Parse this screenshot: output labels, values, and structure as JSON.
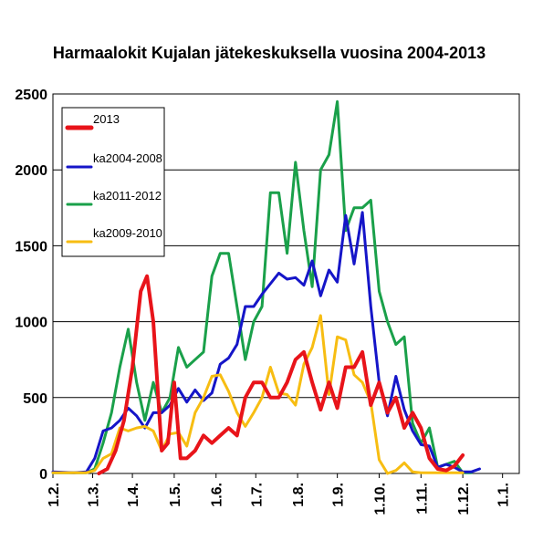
{
  "chart_data": {
    "type": "line",
    "title": "Harmaalokit Kujalan jätekeskuksella vuosina 2004-2013",
    "xlabel": "",
    "ylabel": "",
    "ylim": [
      0,
      2500
    ],
    "yticks": [
      "0",
      "500",
      "1000",
      "1500",
      "2000",
      "2500"
    ],
    "xtick_labels": [
      "1.2.",
      "1.3.",
      "1.4.",
      "1.5.",
      "1.6.",
      "1.7.",
      "1.8.",
      "1.9.",
      "1.10.",
      "1.11.",
      "1.12.",
      "1.1."
    ],
    "xtick_positions": [
      0,
      9.5,
      19,
      29,
      39,
      48.5,
      58.5,
      68,
      78,
      88,
      98,
      107.5
    ],
    "x_range": [
      0,
      111.5
    ],
    "grid": "horizontal",
    "legend_position": "top-left",
    "series": [
      {
        "name": "2013",
        "color": "#e8141a",
        "width": 4,
        "points": [
          [
            11,
            0
          ],
          [
            13,
            30
          ],
          [
            15,
            150
          ],
          [
            17,
            350
          ],
          [
            19,
            700
          ],
          [
            21,
            1200
          ],
          [
            22.5,
            1300
          ],
          [
            24,
            1000
          ],
          [
            26,
            150
          ],
          [
            27.5,
            200
          ],
          [
            29,
            600
          ],
          [
            30.5,
            100
          ],
          [
            32,
            100
          ],
          [
            34,
            150
          ],
          [
            36,
            250
          ],
          [
            38,
            200
          ],
          [
            40,
            250
          ],
          [
            42,
            300
          ],
          [
            44,
            250
          ],
          [
            46,
            500
          ],
          [
            48,
            600
          ],
          [
            50,
            600
          ],
          [
            52,
            500
          ],
          [
            54,
            500
          ],
          [
            56,
            600
          ],
          [
            58,
            750
          ],
          [
            60,
            800
          ],
          [
            62,
            600
          ],
          [
            64,
            420
          ],
          [
            66,
            600
          ],
          [
            68,
            430
          ],
          [
            70,
            700
          ],
          [
            72,
            700
          ],
          [
            74,
            800
          ],
          [
            76,
            450
          ],
          [
            78,
            600
          ],
          [
            80,
            400
          ],
          [
            82,
            500
          ],
          [
            84,
            300
          ],
          [
            86,
            400
          ],
          [
            88,
            300
          ],
          [
            90,
            100
          ],
          [
            92,
            30
          ],
          [
            94,
            20
          ],
          [
            96,
            50
          ],
          [
            98,
            120
          ]
        ]
      },
      {
        "name": "ka2004-2008",
        "color": "#1515c8",
        "width": 3,
        "points": [
          [
            0,
            10
          ],
          [
            5,
            5
          ],
          [
            8,
            10
          ],
          [
            10,
            100
          ],
          [
            12,
            280
          ],
          [
            14,
            300
          ],
          [
            16,
            350
          ],
          [
            18,
            430
          ],
          [
            20,
            380
          ],
          [
            22,
            300
          ],
          [
            24,
            400
          ],
          [
            26,
            400
          ],
          [
            28,
            450
          ],
          [
            30,
            560
          ],
          [
            32,
            470
          ],
          [
            34,
            550
          ],
          [
            36,
            480
          ],
          [
            38,
            530
          ],
          [
            40,
            720
          ],
          [
            42,
            760
          ],
          [
            44,
            850
          ],
          [
            46,
            1100
          ],
          [
            48,
            1100
          ],
          [
            50,
            1180
          ],
          [
            52,
            1250
          ],
          [
            54,
            1320
          ],
          [
            56,
            1280
          ],
          [
            58,
            1290
          ],
          [
            60,
            1240
          ],
          [
            62,
            1400
          ],
          [
            64,
            1170
          ],
          [
            66,
            1340
          ],
          [
            68,
            1260
          ],
          [
            70,
            1700
          ],
          [
            72,
            1380
          ],
          [
            74,
            1720
          ],
          [
            76,
            1100
          ],
          [
            78,
            600
          ],
          [
            80,
            380
          ],
          [
            82,
            640
          ],
          [
            84,
            420
          ],
          [
            86,
            280
          ],
          [
            88,
            190
          ],
          [
            90,
            180
          ],
          [
            92,
            40
          ],
          [
            94,
            60
          ],
          [
            96,
            40
          ],
          [
            98,
            10
          ],
          [
            100,
            10
          ],
          [
            102,
            30
          ]
        ]
      },
      {
        "name": "ka2011-2012",
        "color": "#1aa04a",
        "width": 3,
        "points": [
          [
            0,
            5
          ],
          [
            5,
            5
          ],
          [
            8,
            5
          ],
          [
            10,
            30
          ],
          [
            12,
            200
          ],
          [
            14,
            400
          ],
          [
            16,
            700
          ],
          [
            18,
            950
          ],
          [
            20,
            600
          ],
          [
            22,
            350
          ],
          [
            24,
            600
          ],
          [
            26,
            400
          ],
          [
            28,
            500
          ],
          [
            30,
            830
          ],
          [
            32,
            700
          ],
          [
            34,
            750
          ],
          [
            36,
            800
          ],
          [
            38,
            1300
          ],
          [
            40,
            1450
          ],
          [
            42,
            1450
          ],
          [
            44,
            1100
          ],
          [
            46,
            750
          ],
          [
            48,
            1000
          ],
          [
            50,
            1100
          ],
          [
            52,
            1850
          ],
          [
            54,
            1850
          ],
          [
            56,
            1450
          ],
          [
            58,
            2050
          ],
          [
            60,
            1600
          ],
          [
            62,
            1230
          ],
          [
            64,
            2000
          ],
          [
            66,
            2100
          ],
          [
            68,
            2450
          ],
          [
            70,
            1600
          ],
          [
            72,
            1750
          ],
          [
            74,
            1750
          ],
          [
            76,
            1800
          ],
          [
            78,
            1200
          ],
          [
            80,
            1000
          ],
          [
            82,
            850
          ],
          [
            84,
            900
          ],
          [
            86,
            330
          ],
          [
            88,
            200
          ],
          [
            90,
            300
          ],
          [
            92,
            40
          ],
          [
            94,
            60
          ],
          [
            96,
            80
          ],
          [
            98,
            5
          ],
          [
            100,
            5
          ]
        ]
      },
      {
        "name": "ka2009-2010",
        "color": "#f7bd12",
        "width": 3,
        "points": [
          [
            0,
            5
          ],
          [
            5,
            5
          ],
          [
            8,
            5
          ],
          [
            10,
            20
          ],
          [
            12,
            100
          ],
          [
            14,
            130
          ],
          [
            16,
            300
          ],
          [
            18,
            280
          ],
          [
            20,
            300
          ],
          [
            22,
            310
          ],
          [
            24,
            280
          ],
          [
            26,
            150
          ],
          [
            28,
            260
          ],
          [
            30,
            270
          ],
          [
            32,
            180
          ],
          [
            34,
            400
          ],
          [
            36,
            500
          ],
          [
            38,
            640
          ],
          [
            40,
            650
          ],
          [
            42,
            540
          ],
          [
            44,
            400
          ],
          [
            46,
            310
          ],
          [
            48,
            400
          ],
          [
            50,
            500
          ],
          [
            52,
            700
          ],
          [
            54,
            530
          ],
          [
            56,
            520
          ],
          [
            58,
            450
          ],
          [
            60,
            720
          ],
          [
            62,
            830
          ],
          [
            64,
            1040
          ],
          [
            66,
            520
          ],
          [
            68,
            900
          ],
          [
            70,
            880
          ],
          [
            72,
            650
          ],
          [
            74,
            600
          ],
          [
            76,
            470
          ],
          [
            78,
            90
          ],
          [
            80,
            0
          ],
          [
            82,
            20
          ],
          [
            84,
            70
          ],
          [
            86,
            10
          ],
          [
            88,
            5
          ],
          [
            90,
            5
          ],
          [
            92,
            5
          ],
          [
            94,
            5
          ],
          [
            96,
            5
          ],
          [
            98,
            5
          ]
        ]
      }
    ]
  }
}
